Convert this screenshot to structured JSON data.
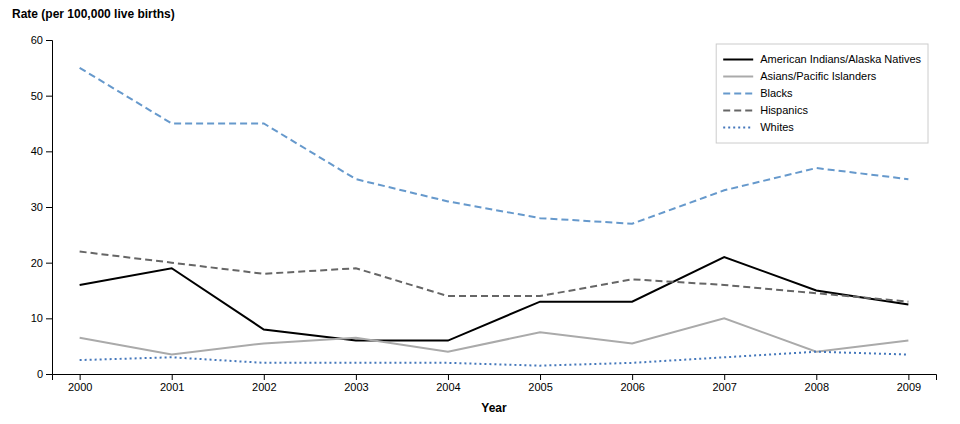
{
  "chart_data": {
    "type": "line",
    "ylabel": "Rate (per 100,000 live births)",
    "xlabel": "Year",
    "x": [
      2000,
      2001,
      2002,
      2003,
      2004,
      2005,
      2006,
      2007,
      2008,
      2009
    ],
    "series": [
      {
        "name": "American Indians/Alaska Natives",
        "color": "#000000",
        "line_style": "solid",
        "values": [
          16,
          19,
          8,
          6,
          6,
          13,
          13,
          21,
          15,
          12.5
        ]
      },
      {
        "name": "Asians/Pacific Islanders",
        "color": "#aaaaaa",
        "line_style": "solid",
        "values": [
          6.5,
          3.5,
          5.5,
          6.5,
          4,
          7.5,
          5.5,
          10,
          4,
          6
        ]
      },
      {
        "name": "Blacks",
        "color": "#6699cc",
        "line_style": "dashed",
        "values": [
          55,
          45,
          45,
          35,
          31,
          28,
          27,
          33,
          37,
          35
        ]
      },
      {
        "name": "Hispanics",
        "color": "#666666",
        "line_style": "dashed",
        "values": [
          22,
          20,
          18,
          19,
          14,
          14,
          17,
          16,
          14.5,
          13
        ]
      },
      {
        "name": "Whites",
        "color": "#4477bb",
        "line_style": "dotted",
        "values": [
          2.5,
          3,
          2,
          2,
          2,
          1.5,
          2,
          3,
          4,
          3.5
        ]
      }
    ],
    "xlim": [
      1999.7,
      2009.3
    ],
    "xticks": [
      2000,
      2001,
      2002,
      2003,
      2004,
      2005,
      2006,
      2007,
      2008,
      2009
    ],
    "ylim": [
      0,
      60
    ],
    "yticks": [
      0,
      10,
      20,
      30,
      40,
      50,
      60
    ],
    "grid": false,
    "legend": "upper right"
  }
}
